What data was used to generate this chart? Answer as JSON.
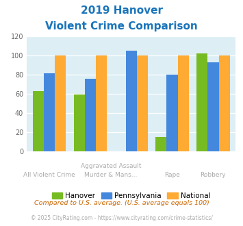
{
  "title_line1": "2019 Hanover",
  "title_line2": "Violent Crime Comparison",
  "title_color": "#1a75bb",
  "hanover": [
    63,
    59,
    15,
    102
  ],
  "pennsylvania": [
    81,
    76,
    105,
    80,
    93
  ],
  "national": [
    100,
    100,
    100,
    100,
    100
  ],
  "hanover_5": [
    63,
    59,
    0,
    15,
    102
  ],
  "pennsylvania_5": [
    81,
    76,
    105,
    80,
    93
  ],
  "national_5": [
    100,
    100,
    100,
    100,
    100
  ],
  "hanover_color": "#77bb22",
  "pennsylvania_color": "#4488dd",
  "national_color": "#ffaa33",
  "bg_color": "#ddeef5",
  "ylim": [
    0,
    120
  ],
  "yticks": [
    0,
    20,
    40,
    60,
    80,
    100,
    120
  ],
  "top_row_labels": [
    "",
    "Aggravated Assault",
    "",
    "",
    ""
  ],
  "bottom_row_labels": [
    "All Violent Crime",
    "",
    "Murder & Mans...",
    "Rape",
    "Robbery"
  ],
  "footnote1": "Compared to U.S. average. (U.S. average equals 100)",
  "footnote2": "© 2025 CityRating.com - https://www.cityrating.com/crime-statistics/",
  "footnote1_color": "#cc6600",
  "footnote2_color": "#aaaaaa",
  "footnote2_link_color": "#4488dd"
}
